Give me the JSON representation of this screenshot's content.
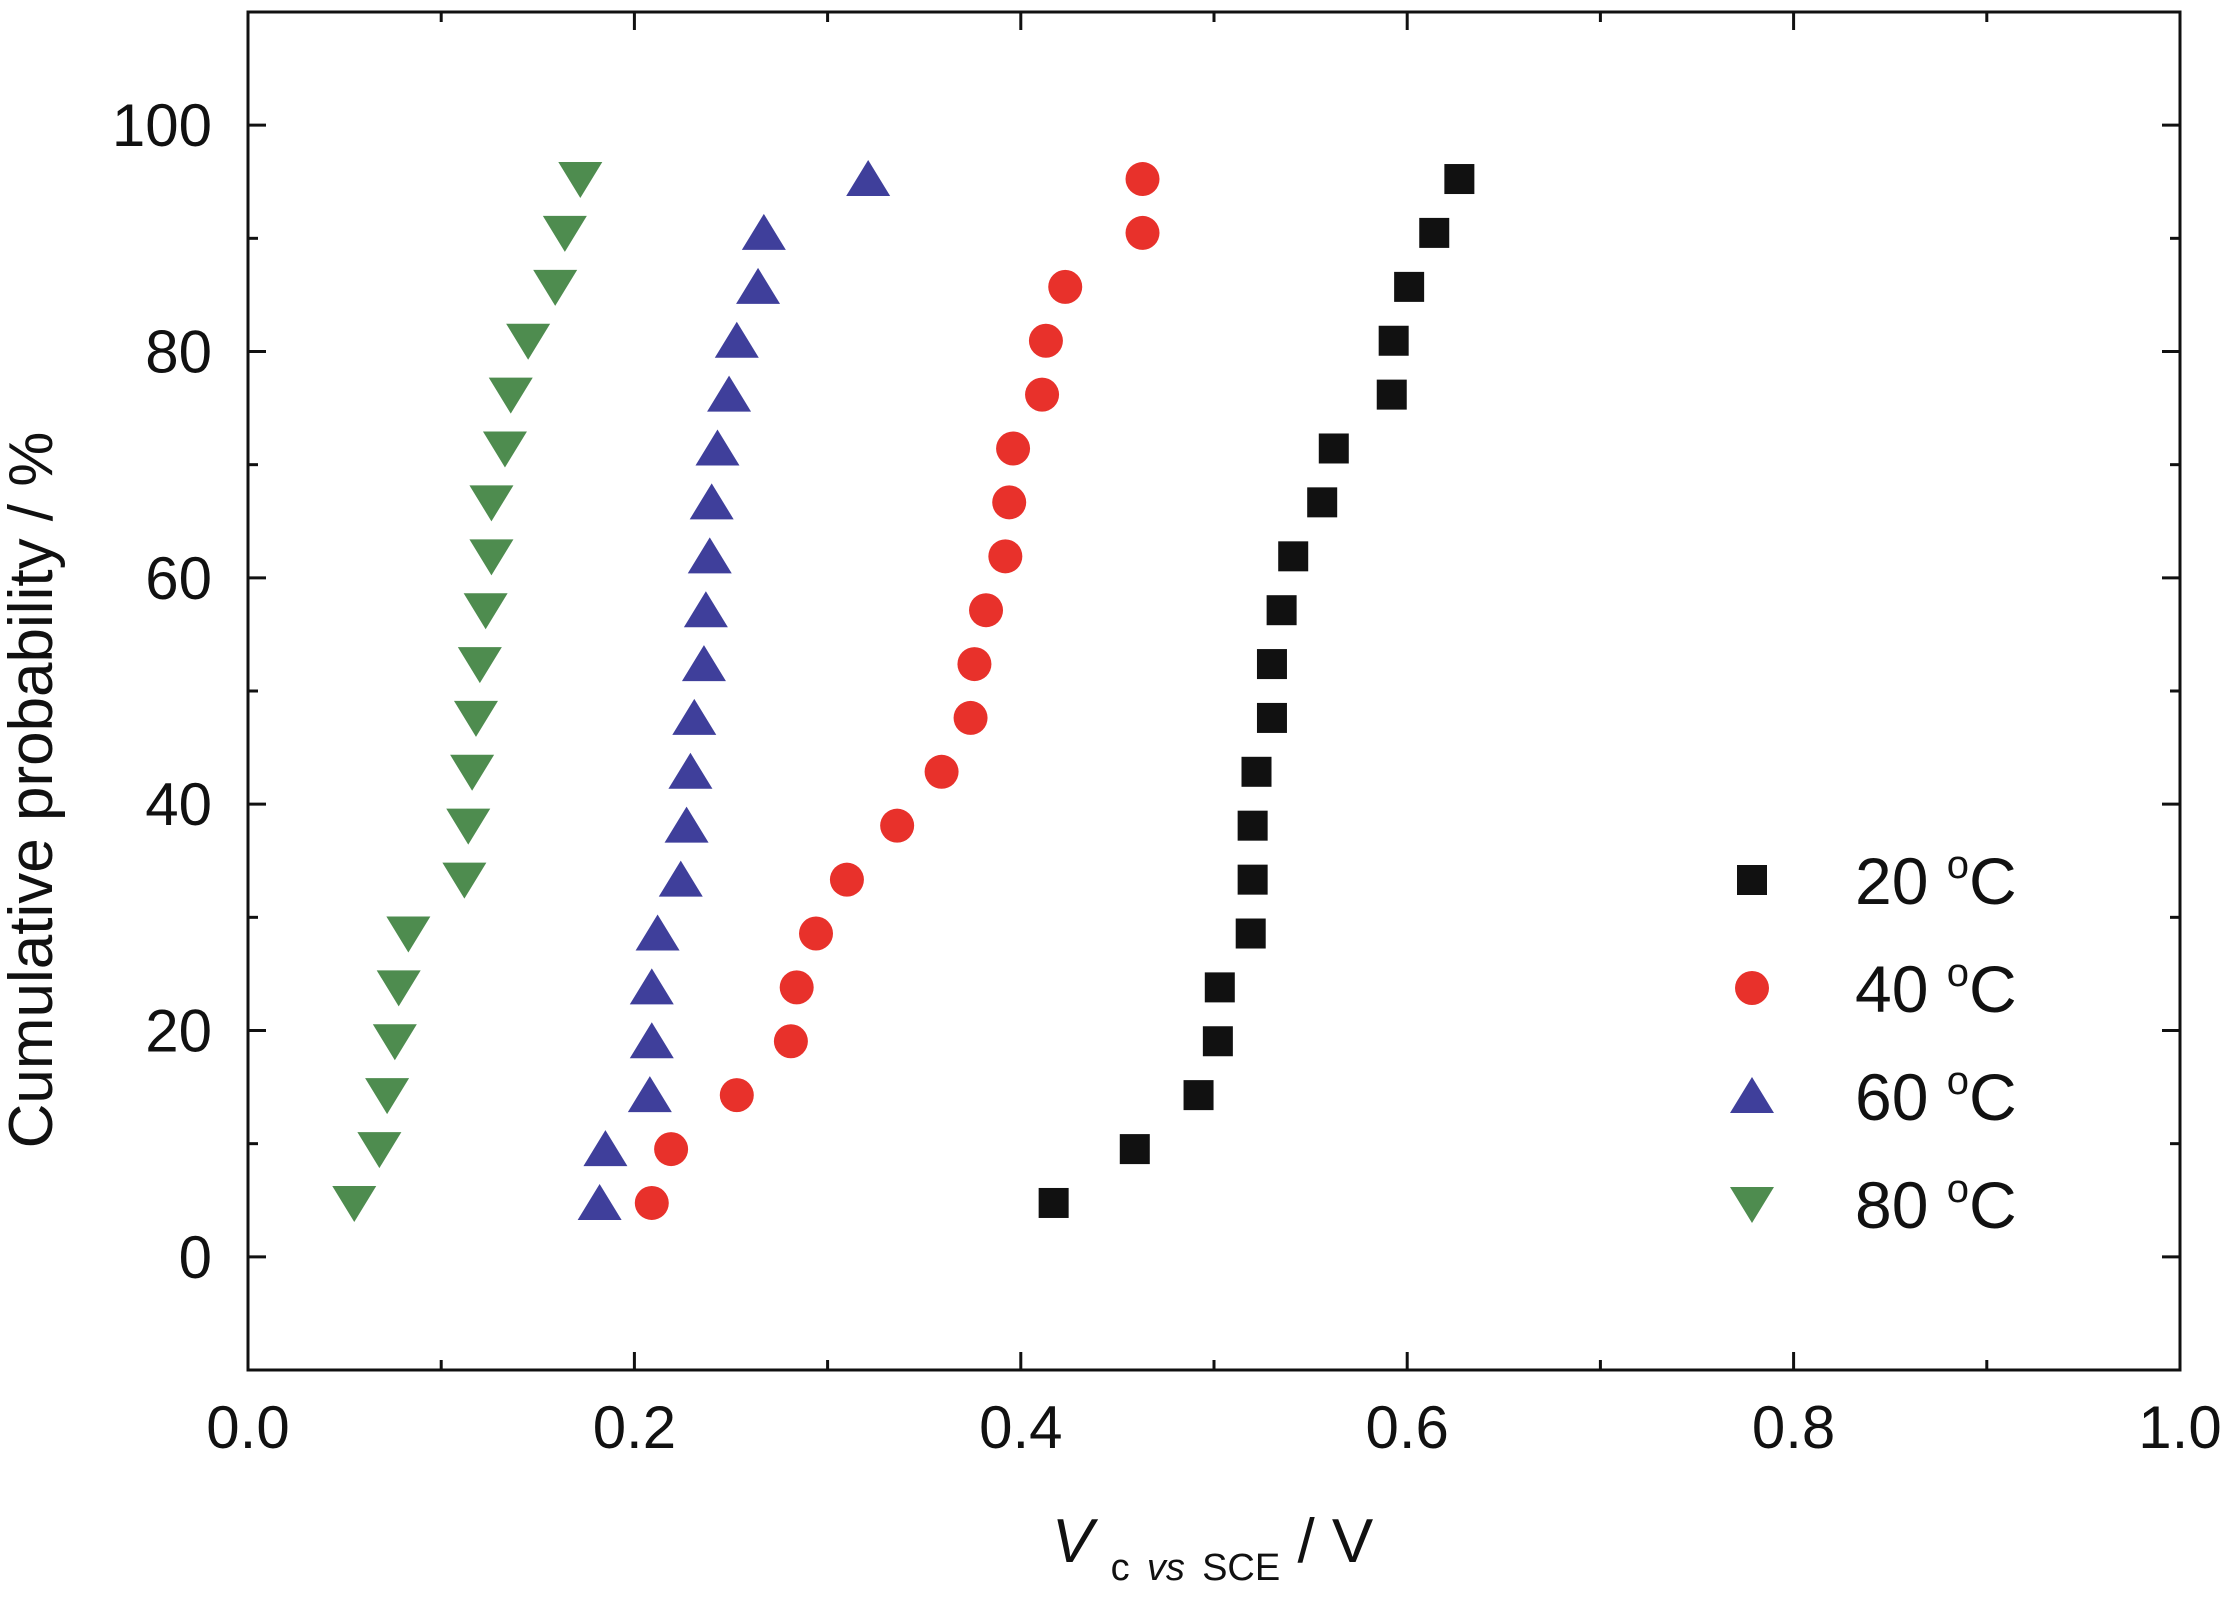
{
  "chart_data": {
    "type": "scatter",
    "xlabel": {
      "main": "V",
      "subscript_c": "c",
      "subscript_vs": "vs",
      "subscript_ref": "SCE",
      "unit": " / V"
    },
    "ylabel": "Cumulative probability / %",
    "xlim": [
      0.0,
      1.0
    ],
    "ylim": [
      -10,
      110
    ],
    "x_ticks": [
      "0.0",
      "0.2",
      "0.4",
      "0.6",
      "0.8",
      "1.0"
    ],
    "x_tick_values": [
      0.0,
      0.2,
      0.4,
      0.6,
      0.8,
      1.0
    ],
    "y_ticks": [
      "0",
      "20",
      "40",
      "60",
      "80",
      "100"
    ],
    "y_tick_values": [
      0,
      20,
      40,
      60,
      80,
      100
    ],
    "grid": false,
    "legend_position": "bottom-right",
    "series": [
      {
        "name": "20 °C",
        "label_main": "20 ",
        "label_sup": "o",
        "label_tail": "C",
        "marker": "square",
        "color": "#111111",
        "points": [
          [
            0.417,
            4.76
          ],
          [
            0.459,
            9.52
          ],
          [
            0.492,
            14.29
          ],
          [
            0.502,
            19.05
          ],
          [
            0.503,
            23.81
          ],
          [
            0.519,
            28.57
          ],
          [
            0.52,
            33.33
          ],
          [
            0.52,
            38.1
          ],
          [
            0.522,
            42.86
          ],
          [
            0.53,
            47.62
          ],
          [
            0.53,
            52.38
          ],
          [
            0.535,
            57.14
          ],
          [
            0.541,
            61.9
          ],
          [
            0.556,
            66.67
          ],
          [
            0.562,
            71.43
          ],
          [
            0.592,
            76.19
          ],
          [
            0.593,
            80.95
          ],
          [
            0.601,
            85.71
          ],
          [
            0.614,
            90.48
          ],
          [
            0.627,
            95.24
          ]
        ]
      },
      {
        "name": "40 °C",
        "label_main": "40 ",
        "label_sup": "o",
        "label_tail": "C",
        "marker": "circle",
        "color": "#e8312b",
        "points": [
          [
            0.209,
            4.76
          ],
          [
            0.219,
            9.52
          ],
          [
            0.253,
            14.29
          ],
          [
            0.281,
            19.05
          ],
          [
            0.284,
            23.81
          ],
          [
            0.294,
            28.57
          ],
          [
            0.31,
            33.33
          ],
          [
            0.336,
            38.1
          ],
          [
            0.359,
            42.86
          ],
          [
            0.374,
            47.62
          ],
          [
            0.376,
            52.38
          ],
          [
            0.382,
            57.14
          ],
          [
            0.392,
            61.9
          ],
          [
            0.394,
            66.67
          ],
          [
            0.396,
            71.43
          ],
          [
            0.411,
            76.19
          ],
          [
            0.413,
            80.95
          ],
          [
            0.423,
            85.71
          ],
          [
            0.463,
            90.48
          ],
          [
            0.463,
            95.24
          ]
        ]
      },
      {
        "name": "60 °C",
        "label_main": "60 ",
        "label_sup": "o",
        "label_tail": "C",
        "marker": "triangle-up",
        "color": "#3f3f9b",
        "points": [
          [
            0.182,
            4.76
          ],
          [
            0.185,
            9.52
          ],
          [
            0.208,
            14.29
          ],
          [
            0.209,
            19.05
          ],
          [
            0.209,
            23.81
          ],
          [
            0.212,
            28.57
          ],
          [
            0.224,
            33.33
          ],
          [
            0.227,
            38.1
          ],
          [
            0.229,
            42.86
          ],
          [
            0.231,
            47.62
          ],
          [
            0.236,
            52.38
          ],
          [
            0.237,
            57.14
          ],
          [
            0.239,
            61.9
          ],
          [
            0.24,
            66.67
          ],
          [
            0.243,
            71.43
          ],
          [
            0.249,
            76.19
          ],
          [
            0.253,
            80.95
          ],
          [
            0.264,
            85.71
          ],
          [
            0.267,
            90.48
          ],
          [
            0.321,
            95.24
          ]
        ]
      },
      {
        "name": "80 °C",
        "label_main": "80 ",
        "label_sup": "o",
        "label_tail": "C",
        "marker": "triangle-down",
        "color": "#4e8c4f",
        "points": [
          [
            0.055,
            4.76
          ],
          [
            0.068,
            9.52
          ],
          [
            0.072,
            14.29
          ],
          [
            0.076,
            19.05
          ],
          [
            0.078,
            23.81
          ],
          [
            0.083,
            28.57
          ],
          [
            0.112,
            33.33
          ],
          [
            0.114,
            38.1
          ],
          [
            0.116,
            42.86
          ],
          [
            0.118,
            47.62
          ],
          [
            0.12,
            52.38
          ],
          [
            0.123,
            57.14
          ],
          [
            0.126,
            61.9
          ],
          [
            0.126,
            66.67
          ],
          [
            0.133,
            71.43
          ],
          [
            0.136,
            76.19
          ],
          [
            0.145,
            80.95
          ],
          [
            0.159,
            85.71
          ],
          [
            0.164,
            90.48
          ],
          [
            0.172,
            95.24
          ]
        ]
      }
    ]
  }
}
